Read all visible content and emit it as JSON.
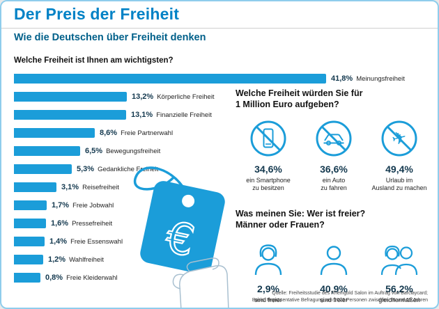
{
  "page": {
    "title": "Der Preis der Freiheit",
    "subtitle": "Wie die Deutschen über Freiheit denken"
  },
  "chart_data": {
    "type": "bar",
    "orientation": "horizontal",
    "title": "Welche Freiheit ist Ihnen am wichtigsten?",
    "categories": [
      "Meinungsfreiheit",
      "Körperliche Freiheit",
      "Finanzielle Freiheit",
      "Freie Partnerwahl",
      "Bewegungsfreiheit",
      "Gedankliche Freiheit",
      "Reisefreiheit",
      "Freie Jobwahl",
      "Pressefreiheit",
      "Freie Essenswahl",
      "Wahlfreiheit",
      "Freie Kleiderwahl"
    ],
    "values": [
      41.8,
      13.2,
      13.1,
      8.6,
      6.5,
      5.3,
      3.1,
      1.7,
      1.6,
      1.4,
      1.2,
      0.8
    ],
    "value_labels": [
      "41,8%",
      "13,2%",
      "13,1%",
      "8,6%",
      "6,5%",
      "5,3%",
      "3,1%",
      "1,7%",
      "1,6%",
      "1,4%",
      "1,2%",
      "0,8%"
    ],
    "unit": "%",
    "xlim": [
      0,
      45
    ],
    "bar_color": "#1b9dd9",
    "legend": "none",
    "grid": false
  },
  "million_section": {
    "heading": [
      "Welche Freiheit würden Sie für",
      "1 Million Euro aufgeben?"
    ],
    "items": [
      {
        "icon": "no-smartphone-icon",
        "value": "34,6%",
        "labels": [
          "ein Smartphone",
          "zu besitzen"
        ]
      },
      {
        "icon": "no-car-icon",
        "value": "36,6%",
        "labels": [
          "ein Auto",
          "zu fahren"
        ]
      },
      {
        "icon": "no-plane-icon",
        "value": "49,4%",
        "labels": [
          "Urlaub im",
          "Ausland zu machen"
        ]
      }
    ]
  },
  "freer_section": {
    "heading": [
      "Was meinen Sie: Wer ist freier?",
      "Männer oder Frauen?"
    ],
    "items": [
      {
        "icon": "woman-icon",
        "value": "2,9%",
        "labels": [
          "sind freier"
        ]
      },
      {
        "icon": "man-icon",
        "value": "40,9%",
        "labels": [
          "sind freier"
        ]
      },
      {
        "icon": "couple-icon",
        "value": "56,2%",
        "labels": [
          "gleichermaßen"
        ]
      }
    ]
  },
  "tag": {
    "symbol": "€"
  },
  "source": {
    "lines": [
      "Quelle: Freiheitsstudie des Rheingold Salon im Auftrag von Barclaycard;",
      "Basis: Repräsentative Befragung von 1023 Personen zwischen 18 und 65 Jahren"
    ]
  },
  "colors": {
    "accent": "#1b9dd9",
    "title": "#0082c6",
    "subtitle": "#00608a",
    "value_text": "#13384e"
  }
}
